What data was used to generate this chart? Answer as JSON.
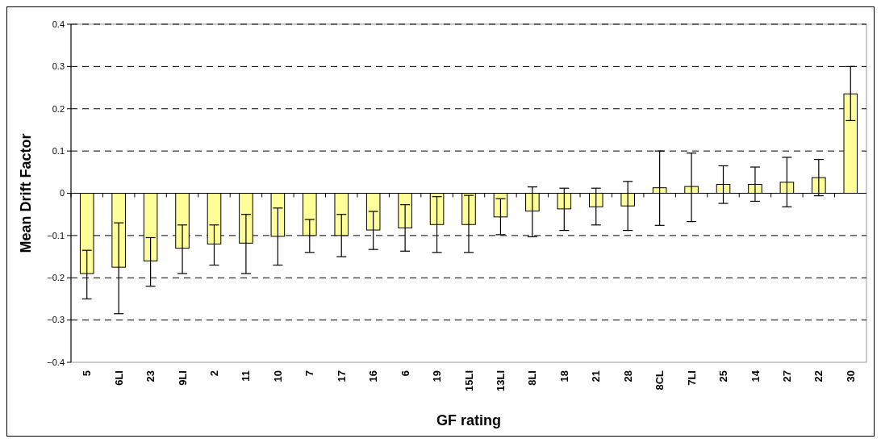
{
  "chart_data": {
    "type": "bar",
    "xlabel": "GF rating",
    "ylabel": "Mean Drift Factor",
    "categories": [
      "5",
      "6LI",
      "23",
      "9LI",
      "2",
      "11",
      "10",
      "7",
      "17",
      "16",
      "6",
      "19",
      "15LI",
      "13LI",
      "8LI",
      "18",
      "21",
      "28",
      "8CL",
      "7LI",
      "25",
      "14",
      "27",
      "22",
      "30"
    ],
    "values": [
      -0.19,
      -0.175,
      -0.16,
      -0.13,
      -0.12,
      -0.118,
      -0.102,
      -0.1,
      -0.1,
      -0.087,
      -0.082,
      -0.074,
      -0.074,
      -0.056,
      -0.042,
      -0.037,
      -0.032,
      -0.03,
      0.013,
      0.016,
      0.021,
      0.021,
      0.026,
      0.037,
      0.235
    ],
    "errors": [
      [
        -0.25,
        -0.135
      ],
      [
        -0.285,
        -0.07
      ],
      [
        -0.22,
        -0.105
      ],
      [
        -0.19,
        -0.075
      ],
      [
        -0.17,
        -0.075
      ],
      [
        -0.19,
        -0.05
      ],
      [
        -0.17,
        -0.035
      ],
      [
        -0.14,
        -0.062
      ],
      [
        -0.15,
        -0.05
      ],
      [
        -0.133,
        -0.043
      ],
      [
        -0.137,
        -0.027
      ],
      [
        -0.14,
        -0.008
      ],
      [
        -0.14,
        -0.005
      ],
      [
        -0.098,
        -0.013
      ],
      [
        -0.103,
        0.015
      ],
      [
        -0.088,
        0.012
      ],
      [
        -0.075,
        0.012
      ],
      [
        -0.088,
        0.028
      ],
      [
        -0.076,
        0.1
      ],
      [
        -0.067,
        0.095
      ],
      [
        -0.024,
        0.065
      ],
      [
        -0.019,
        0.062
      ],
      [
        -0.032,
        0.085
      ],
      [
        -0.006,
        0.08
      ],
      [
        0.172,
        0.3
      ]
    ],
    "color": "#ffff99",
    "ylim": [
      -0.4,
      0.4
    ],
    "yticks": [
      -0.4,
      -0.3,
      -0.2,
      -0.1,
      0,
      0.1,
      0.2,
      0.3,
      0.4
    ],
    "grid": "y"
  }
}
